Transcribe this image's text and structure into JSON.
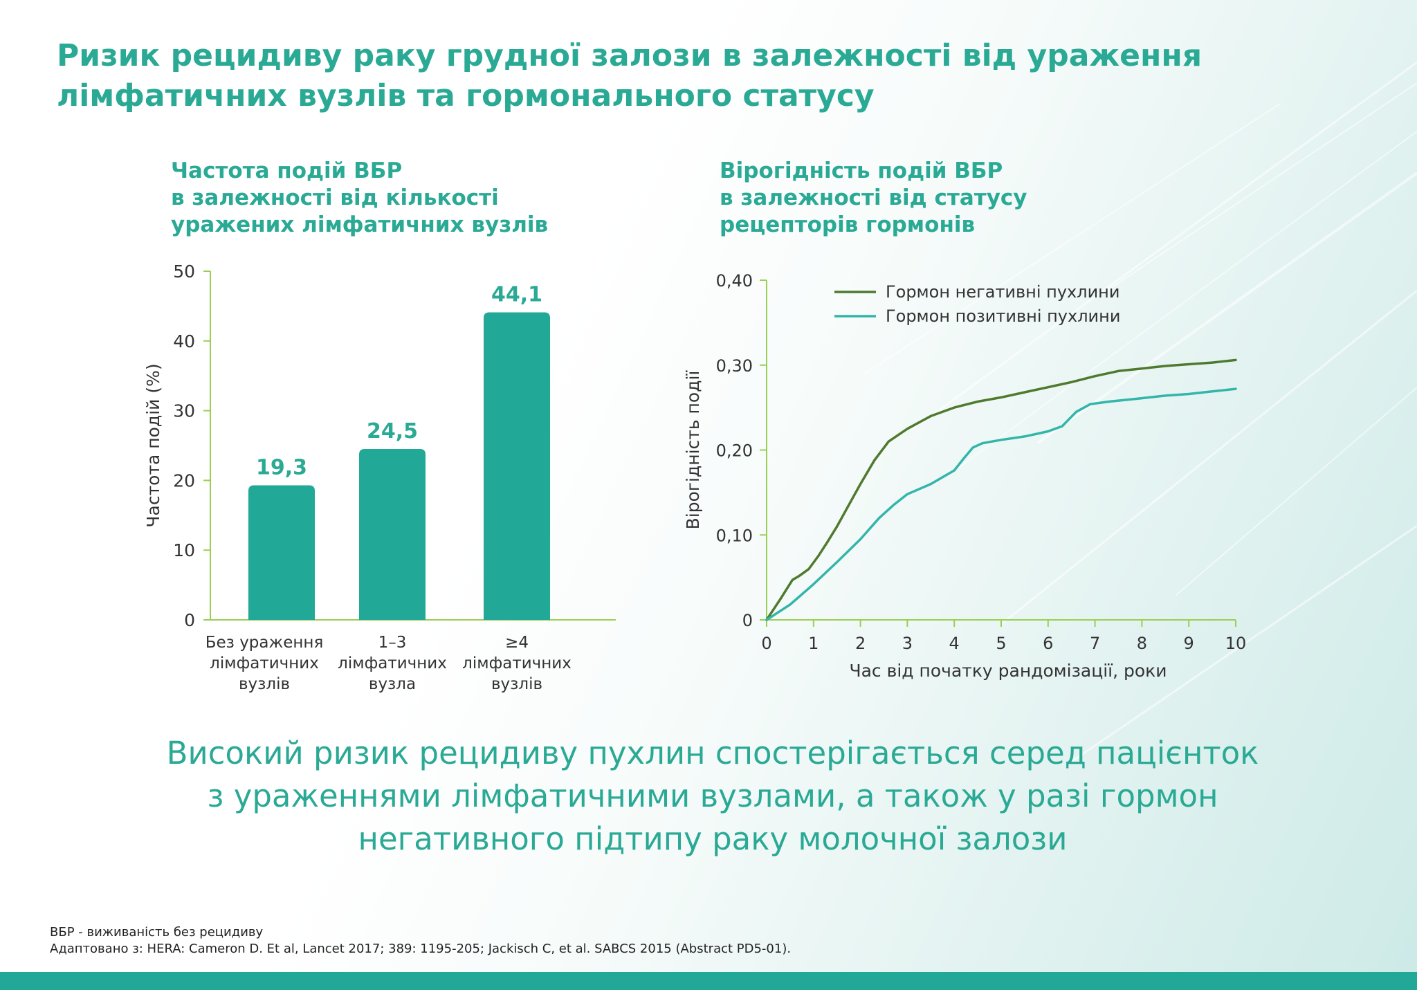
{
  "title_lines": [
    "Ризик рецидиву раку грудної залози в залежності від ураження",
    "лімфатичних вузлів та гормонального статусу"
  ],
  "left_heading_lines": [
    "Частота подій ВБР",
    "в залежності від кількості",
    "уражених лімфатичних вузлів"
  ],
  "right_heading_lines": [
    "Вірогідність подій ВБР",
    "в залежності від статусу",
    "рецепторів гормонів"
  ],
  "conclusion_lines": [
    "Високий ризик рецидиву пухлин спостерігається серед пацієнток",
    "з ураженнями лімфатичними вузлами, а також у разі гормон",
    "негативного підтипу раку молочної залози"
  ],
  "footnotes": {
    "abbreviation": "ВБР - виживаність без рецидиву",
    "source": "Адаптовано з: HERA: Cameron D. Et al, Lancet 2017; 389: 1195-205; Jackisch C, et al. SABCS 2015 (Abstract PD5-01)."
  },
  "colors": {
    "accent": "#2aa995",
    "bar": "#22a896",
    "axis": "#9bcf53",
    "negative_line": "#4f7a2e",
    "positive_line": "#33b5aa",
    "band": "#22a896"
  },
  "chart_data": [
    {
      "type": "bar",
      "categories": [
        [
          "Без ураження",
          "лімфатичних",
          "вузлів"
        ],
        [
          "1–3",
          "лімфатичних",
          "вузла"
        ],
        [
          "≥4",
          "лімфатичних",
          "вузлів"
        ]
      ],
      "values": [
        19.3,
        24.5,
        44.1
      ],
      "value_labels": [
        "19,3",
        "24,5",
        "44,1"
      ],
      "ylabel": "Частота подій (%)",
      "ylim": [
        0,
        50
      ],
      "yticks": [
        0,
        10,
        20,
        30,
        40,
        50
      ],
      "ytick_labels": [
        "0",
        "10",
        "20",
        "30",
        "40",
        "50"
      ],
      "grid": false
    },
    {
      "type": "line",
      "xlabel": "Час від початку рандомізації, роки",
      "ylabel": "Вірогідність події",
      "xlim": [
        0,
        10
      ],
      "ylim": [
        0,
        0.4
      ],
      "xticks": [
        0,
        1,
        2,
        3,
        4,
        5,
        6,
        7,
        8,
        9,
        10
      ],
      "xtick_labels": [
        "0",
        "1",
        "2",
        "3",
        "4",
        "5",
        "6",
        "7",
        "8",
        "9",
        "10"
      ],
      "yticks": [
        0,
        0.1,
        0.2,
        0.3,
        0.4
      ],
      "ytick_labels": [
        "0",
        "0,10",
        "0,20",
        "0,30",
        "0,40"
      ],
      "legend_position": "top-right",
      "grid": false,
      "series": [
        {
          "name": "Гормон негативні пухлини",
          "color": "#4f7a2e",
          "points": [
            [
              0,
              0
            ],
            [
              0.3,
              0.025
            ],
            [
              0.55,
              0.047
            ],
            [
              0.7,
              0.052
            ],
            [
              0.9,
              0.06
            ],
            [
              1.1,
              0.075
            ],
            [
              1.3,
              0.092
            ],
            [
              1.5,
              0.11
            ],
            [
              1.75,
              0.135
            ],
            [
              2.0,
              0.16
            ],
            [
              2.3,
              0.188
            ],
            [
              2.6,
              0.21
            ],
            [
              3.0,
              0.225
            ],
            [
              3.5,
              0.24
            ],
            [
              4.0,
              0.25
            ],
            [
              4.5,
              0.257
            ],
            [
              5.0,
              0.262
            ],
            [
              5.5,
              0.268
            ],
            [
              6.0,
              0.274
            ],
            [
              6.5,
              0.28
            ],
            [
              7.0,
              0.287
            ],
            [
              7.5,
              0.293
            ],
            [
              8.0,
              0.296
            ],
            [
              8.5,
              0.299
            ],
            [
              9.0,
              0.301
            ],
            [
              9.5,
              0.303
            ],
            [
              10.0,
              0.306
            ]
          ]
        },
        {
          "name": "Гормон позитивні пухлини",
          "color": "#33b5aa",
          "points": [
            [
              0,
              0
            ],
            [
              0.5,
              0.018
            ],
            [
              1.0,
              0.042
            ],
            [
              1.5,
              0.068
            ],
            [
              2.0,
              0.095
            ],
            [
              2.4,
              0.12
            ],
            [
              2.7,
              0.135
            ],
            [
              3.0,
              0.148
            ],
            [
              3.5,
              0.16
            ],
            [
              4.0,
              0.176
            ],
            [
              4.2,
              0.19
            ],
            [
              4.4,
              0.203
            ],
            [
              4.6,
              0.208
            ],
            [
              5.0,
              0.212
            ],
            [
              5.5,
              0.216
            ],
            [
              6.0,
              0.222
            ],
            [
              6.3,
              0.228
            ],
            [
              6.6,
              0.245
            ],
            [
              6.9,
              0.254
            ],
            [
              7.3,
              0.257
            ],
            [
              8.0,
              0.261
            ],
            [
              8.5,
              0.264
            ],
            [
              9.0,
              0.266
            ],
            [
              9.5,
              0.269
            ],
            [
              10.0,
              0.272
            ]
          ]
        }
      ]
    }
  ]
}
